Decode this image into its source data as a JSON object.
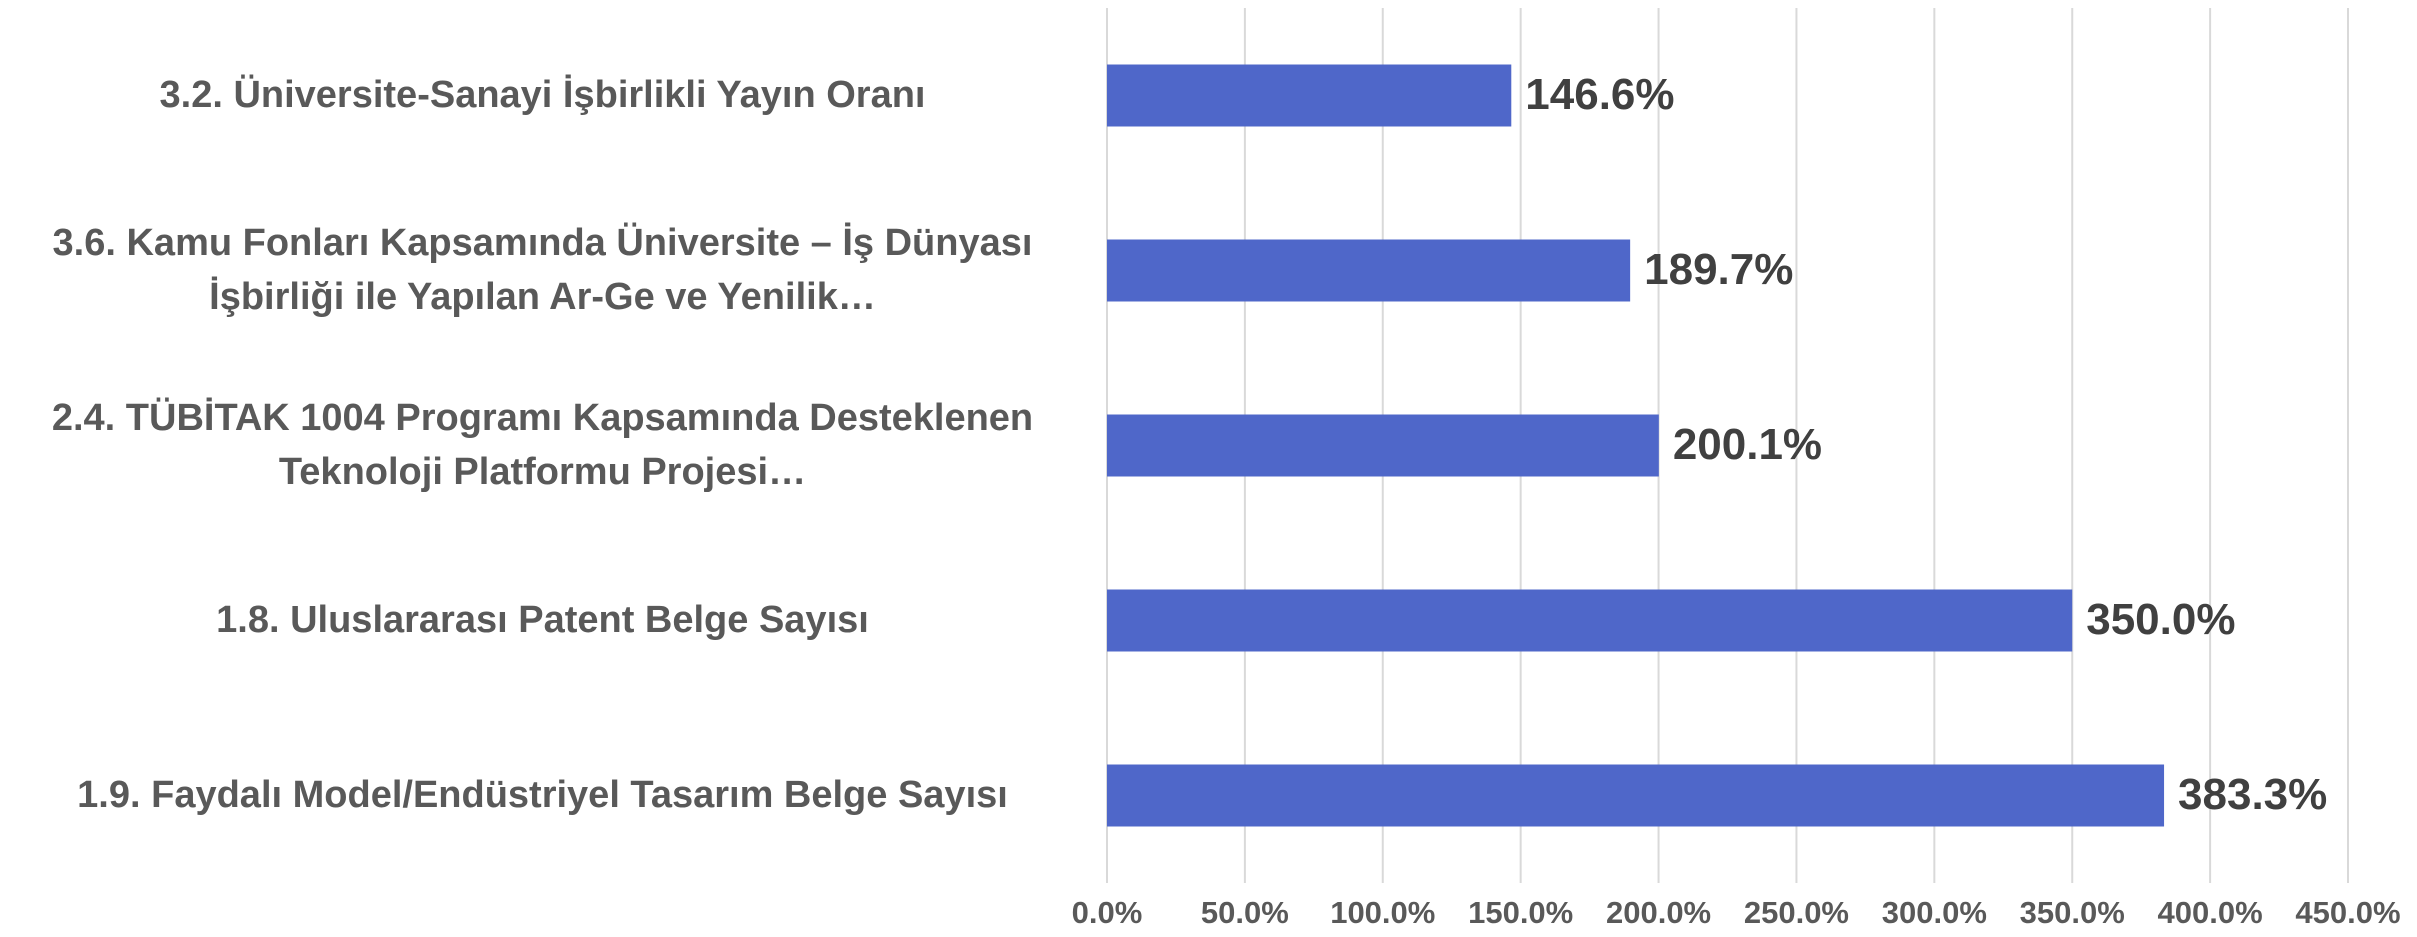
{
  "chart_data": {
    "type": "bar",
    "orientation": "horizontal",
    "categories": [
      "3.2. Üniversite-Sanayi İşbirlikli Yayın Oranı",
      "3.6. Kamu Fonları Kapsamında Üniversite – İş Dünyası İşbirliği ile Yapılan Ar-Ge ve Yenilik…",
      "2.4. TÜBİTAK 1004 Programı Kapsamında Desteklenen Teknoloji Platformu Projesi…",
      "1.8. Uluslararası Patent Belge Sayısı",
      "1.9. Faydalı Model/Endüstriyel Tasarım Belge Sayısı"
    ],
    "values": [
      146.6,
      189.7,
      200.1,
      350.0,
      383.3
    ],
    "value_labels": [
      "146.6%",
      "189.7%",
      "200.1%",
      "350.0%",
      "383.3%"
    ],
    "color": "#4f67c9",
    "xlim": [
      0,
      450
    ],
    "xticks": [
      {
        "value": 0,
        "label": "0.0%"
      },
      {
        "value": 50,
        "label": "50.0%"
      },
      {
        "value": 100,
        "label": "100.0%"
      },
      {
        "value": 150,
        "label": "150.0%"
      },
      {
        "value": 200,
        "label": "200.0%"
      },
      {
        "value": 250,
        "label": "250.0%"
      },
      {
        "value": 300,
        "label": "300.0%"
      },
      {
        "value": 350,
        "label": "350.0%"
      },
      {
        "value": 400,
        "label": "400.0%"
      },
      {
        "value": 450,
        "label": "450.0%"
      }
    ],
    "grid": true
  }
}
